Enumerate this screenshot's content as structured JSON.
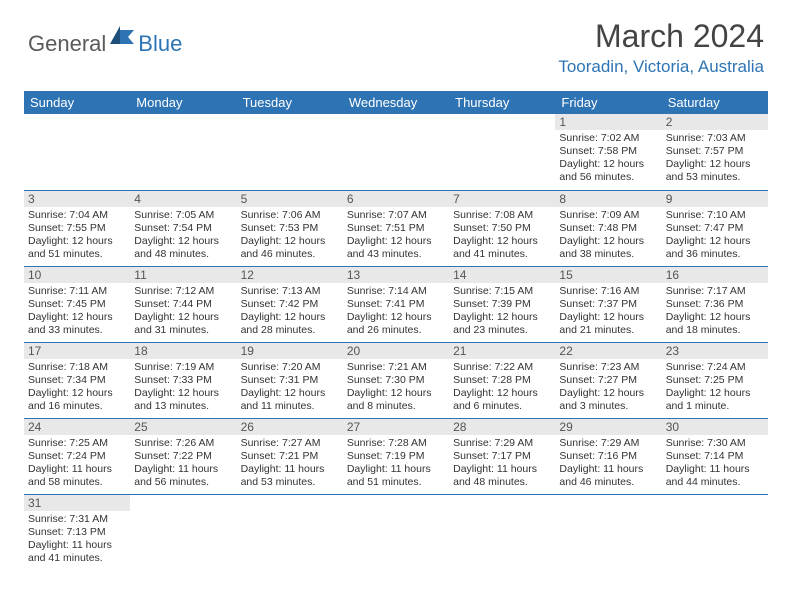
{
  "logo": {
    "general": "General",
    "blue": "Blue"
  },
  "title": "March 2024",
  "location": "Tooradin, Victoria, Australia",
  "colors": {
    "brand_blue": "#2e74b5",
    "header_text": "#ffffff",
    "daynum_bg": "#e8e8e8",
    "body_text": "#333333",
    "logo_gray": "#5a5a5a"
  },
  "day_headers": [
    "Sunday",
    "Monday",
    "Tuesday",
    "Wednesday",
    "Thursday",
    "Friday",
    "Saturday"
  ],
  "weeks": [
    [
      null,
      null,
      null,
      null,
      null,
      {
        "n": "1",
        "sunrise": "Sunrise: 7:02 AM",
        "sunset": "Sunset: 7:58 PM",
        "daylight": "Daylight: 12 hours and 56 minutes."
      },
      {
        "n": "2",
        "sunrise": "Sunrise: 7:03 AM",
        "sunset": "Sunset: 7:57 PM",
        "daylight": "Daylight: 12 hours and 53 minutes."
      }
    ],
    [
      {
        "n": "3",
        "sunrise": "Sunrise: 7:04 AM",
        "sunset": "Sunset: 7:55 PM",
        "daylight": "Daylight: 12 hours and 51 minutes."
      },
      {
        "n": "4",
        "sunrise": "Sunrise: 7:05 AM",
        "sunset": "Sunset: 7:54 PM",
        "daylight": "Daylight: 12 hours and 48 minutes."
      },
      {
        "n": "5",
        "sunrise": "Sunrise: 7:06 AM",
        "sunset": "Sunset: 7:53 PM",
        "daylight": "Daylight: 12 hours and 46 minutes."
      },
      {
        "n": "6",
        "sunrise": "Sunrise: 7:07 AM",
        "sunset": "Sunset: 7:51 PM",
        "daylight": "Daylight: 12 hours and 43 minutes."
      },
      {
        "n": "7",
        "sunrise": "Sunrise: 7:08 AM",
        "sunset": "Sunset: 7:50 PM",
        "daylight": "Daylight: 12 hours and 41 minutes."
      },
      {
        "n": "8",
        "sunrise": "Sunrise: 7:09 AM",
        "sunset": "Sunset: 7:48 PM",
        "daylight": "Daylight: 12 hours and 38 minutes."
      },
      {
        "n": "9",
        "sunrise": "Sunrise: 7:10 AM",
        "sunset": "Sunset: 7:47 PM",
        "daylight": "Daylight: 12 hours and 36 minutes."
      }
    ],
    [
      {
        "n": "10",
        "sunrise": "Sunrise: 7:11 AM",
        "sunset": "Sunset: 7:45 PM",
        "daylight": "Daylight: 12 hours and 33 minutes."
      },
      {
        "n": "11",
        "sunrise": "Sunrise: 7:12 AM",
        "sunset": "Sunset: 7:44 PM",
        "daylight": "Daylight: 12 hours and 31 minutes."
      },
      {
        "n": "12",
        "sunrise": "Sunrise: 7:13 AM",
        "sunset": "Sunset: 7:42 PM",
        "daylight": "Daylight: 12 hours and 28 minutes."
      },
      {
        "n": "13",
        "sunrise": "Sunrise: 7:14 AM",
        "sunset": "Sunset: 7:41 PM",
        "daylight": "Daylight: 12 hours and 26 minutes."
      },
      {
        "n": "14",
        "sunrise": "Sunrise: 7:15 AM",
        "sunset": "Sunset: 7:39 PM",
        "daylight": "Daylight: 12 hours and 23 minutes."
      },
      {
        "n": "15",
        "sunrise": "Sunrise: 7:16 AM",
        "sunset": "Sunset: 7:37 PM",
        "daylight": "Daylight: 12 hours and 21 minutes."
      },
      {
        "n": "16",
        "sunrise": "Sunrise: 7:17 AM",
        "sunset": "Sunset: 7:36 PM",
        "daylight": "Daylight: 12 hours and 18 minutes."
      }
    ],
    [
      {
        "n": "17",
        "sunrise": "Sunrise: 7:18 AM",
        "sunset": "Sunset: 7:34 PM",
        "daylight": "Daylight: 12 hours and 16 minutes."
      },
      {
        "n": "18",
        "sunrise": "Sunrise: 7:19 AM",
        "sunset": "Sunset: 7:33 PM",
        "daylight": "Daylight: 12 hours and 13 minutes."
      },
      {
        "n": "19",
        "sunrise": "Sunrise: 7:20 AM",
        "sunset": "Sunset: 7:31 PM",
        "daylight": "Daylight: 12 hours and 11 minutes."
      },
      {
        "n": "20",
        "sunrise": "Sunrise: 7:21 AM",
        "sunset": "Sunset: 7:30 PM",
        "daylight": "Daylight: 12 hours and 8 minutes."
      },
      {
        "n": "21",
        "sunrise": "Sunrise: 7:22 AM",
        "sunset": "Sunset: 7:28 PM",
        "daylight": "Daylight: 12 hours and 6 minutes."
      },
      {
        "n": "22",
        "sunrise": "Sunrise: 7:23 AM",
        "sunset": "Sunset: 7:27 PM",
        "daylight": "Daylight: 12 hours and 3 minutes."
      },
      {
        "n": "23",
        "sunrise": "Sunrise: 7:24 AM",
        "sunset": "Sunset: 7:25 PM",
        "daylight": "Daylight: 12 hours and 1 minute."
      }
    ],
    [
      {
        "n": "24",
        "sunrise": "Sunrise: 7:25 AM",
        "sunset": "Sunset: 7:24 PM",
        "daylight": "Daylight: 11 hours and 58 minutes."
      },
      {
        "n": "25",
        "sunrise": "Sunrise: 7:26 AM",
        "sunset": "Sunset: 7:22 PM",
        "daylight": "Daylight: 11 hours and 56 minutes."
      },
      {
        "n": "26",
        "sunrise": "Sunrise: 7:27 AM",
        "sunset": "Sunset: 7:21 PM",
        "daylight": "Daylight: 11 hours and 53 minutes."
      },
      {
        "n": "27",
        "sunrise": "Sunrise: 7:28 AM",
        "sunset": "Sunset: 7:19 PM",
        "daylight": "Daylight: 11 hours and 51 minutes."
      },
      {
        "n": "28",
        "sunrise": "Sunrise: 7:29 AM",
        "sunset": "Sunset: 7:17 PM",
        "daylight": "Daylight: 11 hours and 48 minutes."
      },
      {
        "n": "29",
        "sunrise": "Sunrise: 7:29 AM",
        "sunset": "Sunset: 7:16 PM",
        "daylight": "Daylight: 11 hours and 46 minutes."
      },
      {
        "n": "30",
        "sunrise": "Sunrise: 7:30 AM",
        "sunset": "Sunset: 7:14 PM",
        "daylight": "Daylight: 11 hours and 44 minutes."
      }
    ],
    [
      {
        "n": "31",
        "sunrise": "Sunrise: 7:31 AM",
        "sunset": "Sunset: 7:13 PM",
        "daylight": "Daylight: 11 hours and 41 minutes."
      },
      null,
      null,
      null,
      null,
      null,
      null
    ]
  ]
}
